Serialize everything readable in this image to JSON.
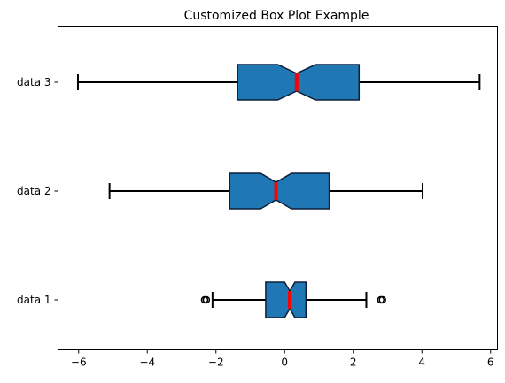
{
  "chart_data": {
    "type": "boxplot",
    "orientation": "horizontal",
    "title": "Customized Box Plot Example",
    "xlabel": "",
    "ylabel": "",
    "xlim": [
      -6.6,
      6.2
    ],
    "x_ticks": [
      -6,
      -4,
      -2,
      0,
      2,
      4,
      6
    ],
    "x_tick_labels": [
      "−6",
      "−4",
      "−2",
      "0",
      "2",
      "4",
      "6"
    ],
    "grid": false,
    "notched": true,
    "series": [
      {
        "name": "data 1",
        "whisker_low": -2.1,
        "q1": -0.55,
        "notch_low": 0.0,
        "median": 0.15,
        "notch_high": 0.3,
        "q3": 0.62,
        "whisker_high": 2.38,
        "outliers": [
          -2.33,
          -2.28,
          2.8,
          2.85
        ]
      },
      {
        "name": "data 2",
        "whisker_low": -5.1,
        "q1": -1.6,
        "notch_low": -0.7,
        "median": -0.25,
        "notch_high": 0.2,
        "q3": 1.3,
        "whisker_high": 4.02,
        "outliers": []
      },
      {
        "name": "data 3",
        "whisker_low": -6.02,
        "q1": -1.37,
        "notch_low": -0.2,
        "median": 0.35,
        "notch_high": 0.9,
        "q3": 2.17,
        "whisker_high": 5.68,
        "outliers": []
      }
    ],
    "colors": {
      "box_fill": "#1f77b4",
      "box_edge": "#0d1f3c",
      "median": "#ff0000",
      "whisker": "#000000",
      "outlier_edge": "#000000"
    }
  }
}
